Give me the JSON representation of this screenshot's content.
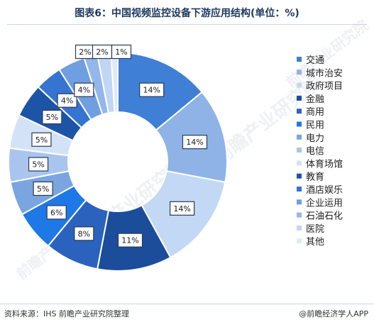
{
  "header": {
    "title": "图表6：中国视频监控设备下游应用结构(单位：%)"
  },
  "footer": {
    "source": "资料来源：IHS 前瞻产业研究院整理",
    "brand": "@前瞻经济学人APP"
  },
  "watermark": {
    "text": "前瞻产业研究院"
  },
  "chart_data": {
    "type": "pie",
    "donut": true,
    "legend_position": "right",
    "categories": [
      "交通",
      "城市治安",
      "政府项目",
      "金融",
      "商用",
      "民用",
      "电力",
      "电信",
      "体育场馆",
      "教育",
      "酒店娱乐",
      "企业运用",
      "石油石化",
      "医院",
      "其他"
    ],
    "values": [
      14,
      14,
      14,
      11,
      8,
      6,
      5,
      5,
      5,
      5,
      4,
      4,
      2,
      2,
      1
    ],
    "labels": [
      "14%",
      "14%",
      "14%",
      "11%",
      "8%",
      "6%",
      "5%",
      "5%",
      "5%",
      "5%",
      "4%",
      "4%",
      "2%",
      "2%",
      "1%"
    ],
    "colors": [
      "#3f7fd6",
      "#8fb3e6",
      "#c3d8f4",
      "#1b4d9a",
      "#2b62bd",
      "#1e78e6",
      "#7aa5e0",
      "#a9c5ee",
      "#d3e2f7",
      "#1c55a8",
      "#3574d0",
      "#6f9fe0",
      "#93b7ea",
      "#c0d6f4",
      "#dfe9f9"
    ]
  }
}
